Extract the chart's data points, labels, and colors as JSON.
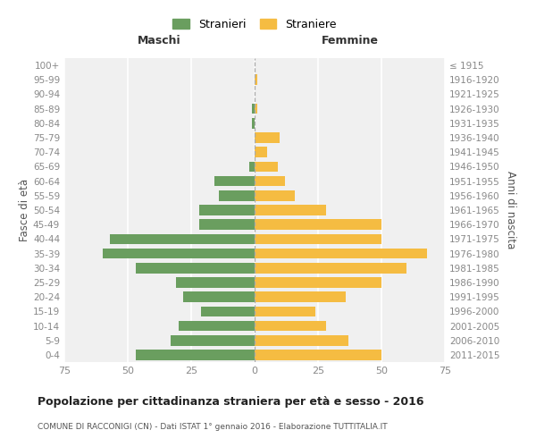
{
  "age_groups": [
    "0-4",
    "5-9",
    "10-14",
    "15-19",
    "20-24",
    "25-29",
    "30-34",
    "35-39",
    "40-44",
    "45-49",
    "50-54",
    "55-59",
    "60-64",
    "65-69",
    "70-74",
    "75-79",
    "80-84",
    "85-89",
    "90-94",
    "95-99",
    "100+"
  ],
  "birth_years": [
    "2011-2015",
    "2006-2010",
    "2001-2005",
    "1996-2000",
    "1991-1995",
    "1986-1990",
    "1981-1985",
    "1976-1980",
    "1971-1975",
    "1966-1970",
    "1961-1965",
    "1956-1960",
    "1951-1955",
    "1946-1950",
    "1941-1945",
    "1936-1940",
    "1931-1935",
    "1926-1930",
    "1921-1925",
    "1916-1920",
    "≤ 1915"
  ],
  "maschi": [
    47,
    33,
    30,
    21,
    28,
    31,
    47,
    60,
    57,
    22,
    22,
    14,
    16,
    2,
    0,
    0,
    1,
    1,
    0,
    0,
    0
  ],
  "femmine": [
    50,
    37,
    28,
    24,
    36,
    50,
    60,
    68,
    50,
    50,
    28,
    16,
    12,
    9,
    5,
    10,
    0,
    1,
    0,
    1,
    0
  ],
  "color_maschi": "#6a9e5f",
  "color_femmine": "#f5bc42",
  "title": "Popolazione per cittadinanza straniera per età e sesso - 2016",
  "subtitle": "COMUNE DI RACCONIGI (CN) - Dati ISTAT 1° gennaio 2016 - Elaborazione TUTTITALIA.IT",
  "xlabel_left": "Maschi",
  "xlabel_right": "Femmine",
  "ylabel_left": "Fasce di età",
  "ylabel_right": "Anni di nascita",
  "xlim": 75,
  "legend_stranieri": "Stranieri",
  "legend_straniere": "Straniere",
  "bg_color": "#ffffff",
  "plot_bg_color": "#f0f0f0",
  "grid_color": "#ffffff",
  "tick_color": "#888888",
  "label_color": "#555555"
}
